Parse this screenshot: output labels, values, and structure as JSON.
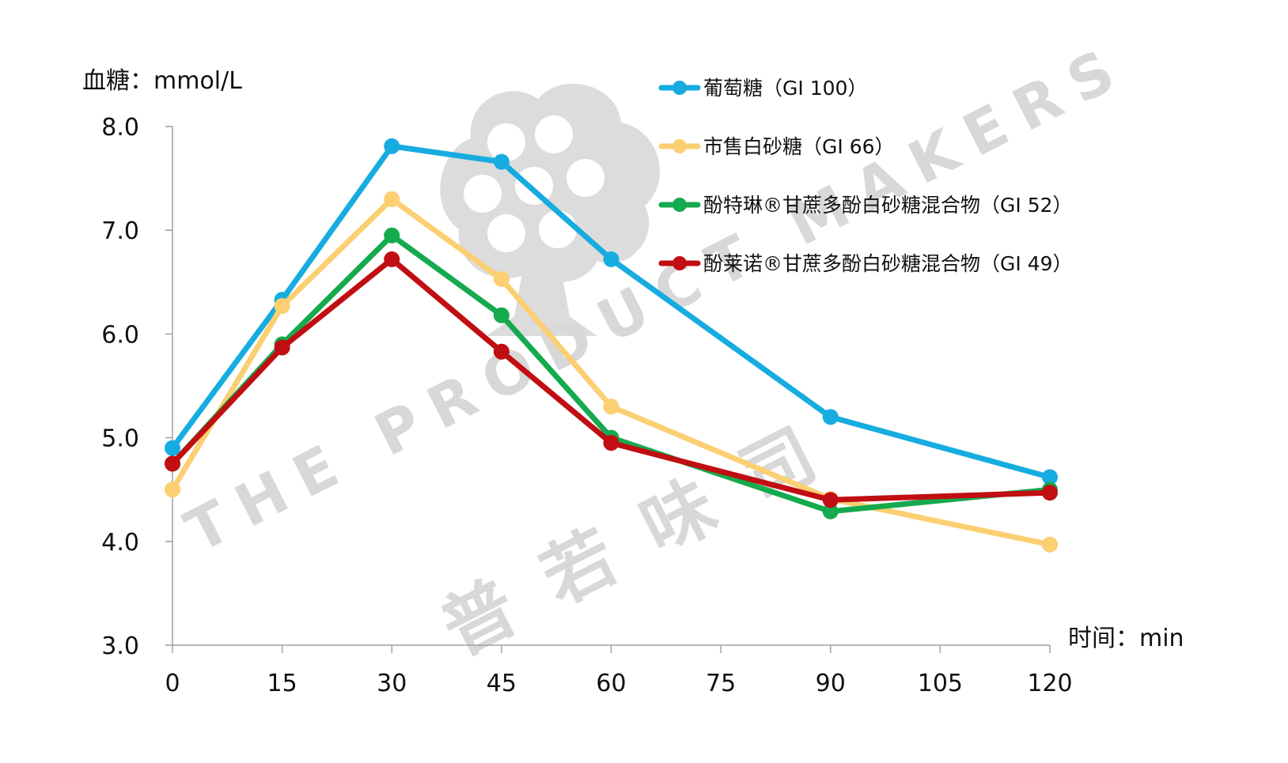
{
  "chart_data": {
    "type": "line",
    "ylabel": "血糖：mmol/L",
    "xlabel": "时间：min",
    "ylim": [
      3.0,
      8.0
    ],
    "xlim": [
      0,
      120
    ],
    "yticks": [
      "3.0",
      "4.0",
      "5.0",
      "6.0",
      "7.0",
      "8.0"
    ],
    "xticks": [
      "0",
      "15",
      "30",
      "45",
      "60",
      "75",
      "90",
      "105",
      "120"
    ],
    "legend_position": "top-right",
    "grid": false,
    "x": [
      0,
      15,
      30,
      45,
      60,
      90,
      120
    ],
    "series": [
      {
        "name": "葡萄糖（GI 100）",
        "color": "#16ace0",
        "values": [
          4.9,
          6.33,
          7.81,
          7.66,
          6.72,
          5.2,
          4.62
        ]
      },
      {
        "name": "市售白砂糖（GI 66）",
        "color": "#fbcf72",
        "values": [
          4.5,
          6.27,
          7.3,
          6.53,
          5.3,
          4.41,
          3.97
        ]
      },
      {
        "name": "酚特琳®甘蔗多酚白砂糖混合物（GI 52）",
        "color": "#15aa4d",
        "values": [
          4.75,
          5.9,
          6.95,
          6.18,
          5.0,
          4.29,
          4.5
        ]
      },
      {
        "name": "酚莱诺®甘蔗多酚白砂糖混合物（GI 49）",
        "color": "#c00e12",
        "values": [
          4.75,
          5.87,
          6.72,
          5.83,
          4.95,
          4.4,
          4.47
        ]
      }
    ]
  },
  "watermark": {
    "lines": [
      "THE PRODUCT MAKERS",
      "普 若 味 司"
    ],
    "logo": "tree-logo"
  }
}
